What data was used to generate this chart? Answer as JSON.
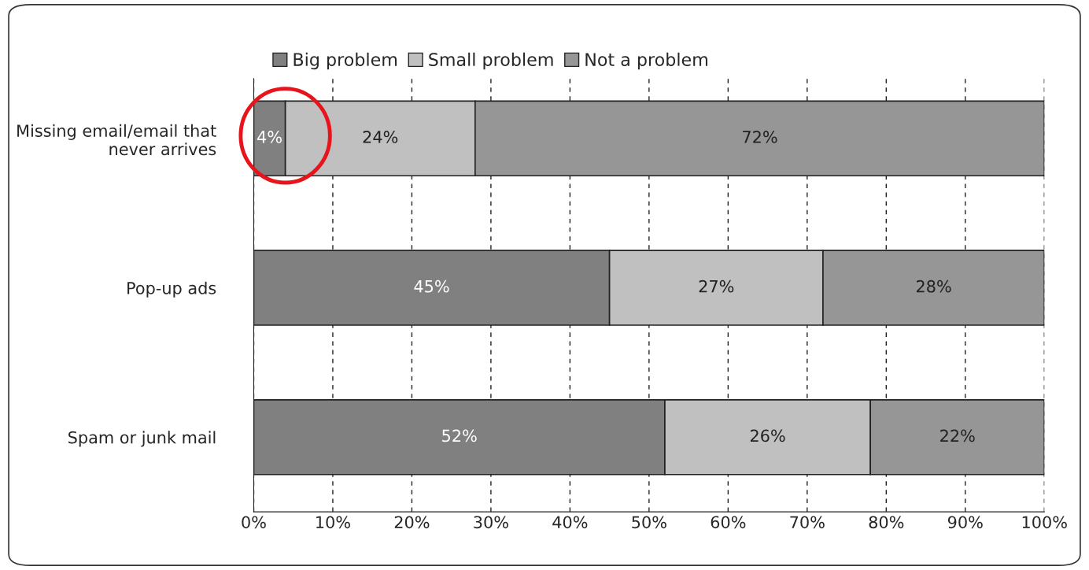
{
  "chart_data": {
    "type": "bar",
    "orientation": "horizontal",
    "stacked": true,
    "categories": [
      "Missing email/email that\nnever arrives",
      "Pop-up ads",
      "Spam or junk mail"
    ],
    "series": [
      {
        "name": "Big problem",
        "color": "#808080",
        "values": [
          4,
          45,
          52
        ],
        "value_labels": [
          "4%",
          "45%",
          "52%"
        ]
      },
      {
        "name": "Small problem",
        "color": "#c0c0c0",
        "values": [
          24,
          27,
          26
        ],
        "value_labels": [
          "24%",
          "27%",
          "26%"
        ]
      },
      {
        "name": "Not a problem",
        "color": "#969696",
        "values": [
          72,
          28,
          22
        ],
        "value_labels": [
          "72%",
          "28%",
          "22%"
        ]
      }
    ],
    "xlim": [
      0,
      100
    ],
    "xticks": [
      {
        "value": 0,
        "label": "0%"
      },
      {
        "value": 10,
        "label": "10%"
      },
      {
        "value": 20,
        "label": "20%"
      },
      {
        "value": 30,
        "label": "30%"
      },
      {
        "value": 40,
        "label": "40%"
      },
      {
        "value": 50,
        "label": "50%"
      },
      {
        "value": 60,
        "label": "60%"
      },
      {
        "value": 70,
        "label": "70%"
      },
      {
        "value": 80,
        "label": "80%"
      },
      {
        "value": 90,
        "label": "90%"
      },
      {
        "value": 100,
        "label": "100%"
      }
    ],
    "grid": "x",
    "legend": "top"
  }
}
